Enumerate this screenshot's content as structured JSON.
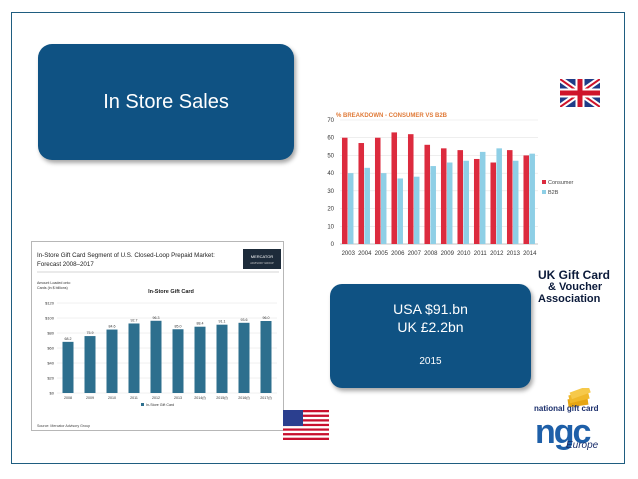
{
  "slide": {
    "title": "In Store Sales",
    "stat_line1": "USA $91.bn",
    "stat_line2": "UK £2.2bn",
    "stat_year": "2015"
  },
  "logos": {
    "ukgcva_line1": "UK Gift Card",
    "ukgcva_line2": "& Voucher",
    "ukgcva_line3": "Association",
    "ngc_top": "national gift card",
    "ngc_logo": "ngc",
    "ngc_region": "Europe",
    "mercator": "MERCATOR ADVISORY GROUP"
  },
  "colors": {
    "slide_blue": "#0f5283",
    "consumer_red": "#dc2b3e",
    "b2b_blue": "#8ecfe6",
    "instore_bar": "#2d6f8e"
  },
  "chart_data": [
    {
      "type": "bar",
      "title": "% BREAKDOWN - CONSUMER VS B2B",
      "categories": [
        "2003",
        "2004",
        "2005",
        "2006",
        "2007",
        "2008",
        "2009",
        "2010",
        "2011",
        "2012",
        "2013",
        "2014"
      ],
      "series": [
        {
          "name": "Consumer",
          "values": [
            60,
            57,
            60,
            63,
            62,
            56,
            54,
            53,
            48,
            46,
            53,
            50
          ],
          "color": "#dc2b3e"
        },
        {
          "name": "B2B",
          "values": [
            40,
            43,
            40,
            37,
            38,
            44,
            46,
            47,
            52,
            54,
            47,
            51
          ],
          "color": "#8ecfe6"
        }
      ],
      "ylim": [
        0,
        70
      ],
      "yticks": [
        0,
        10,
        20,
        30,
        40,
        50,
        60,
        70
      ],
      "grid": true,
      "legend": "right"
    },
    {
      "type": "bar",
      "heading": "In-Store Gift Card Segment of U.S. Closed-Loop Prepaid Market: Forecast 2008–2017",
      "title": "In-Store Gift Card",
      "ylabel": "Amount Loaded onto Cards (in $ billions)",
      "categories": [
        "2008",
        "2009",
        "2010",
        "2011",
        "2012",
        "2013",
        "2014(f)",
        "2015(f)",
        "2016(f)",
        "2017(f)"
      ],
      "series": [
        {
          "name": "In-Store Gift Card",
          "values": [
            68.2,
            75.9,
            84.6,
            92.7,
            96.3,
            85.0,
            88.4,
            91.1,
            93.6,
            96.0
          ],
          "color": "#2d6f8e"
        }
      ],
      "value_labels": [
        "68.2",
        "75.9",
        "84.6",
        "92.7",
        "96.3",
        "85.0",
        "88.4",
        "91.1",
        "93.6",
        "96.0"
      ],
      "ylim": [
        0,
        120
      ],
      "ytick_labels": [
        "$0",
        "$20",
        "$40",
        "$60",
        "$80",
        "$100",
        "$120"
      ],
      "source": "Source:   Mercator Advisory Group"
    }
  ]
}
